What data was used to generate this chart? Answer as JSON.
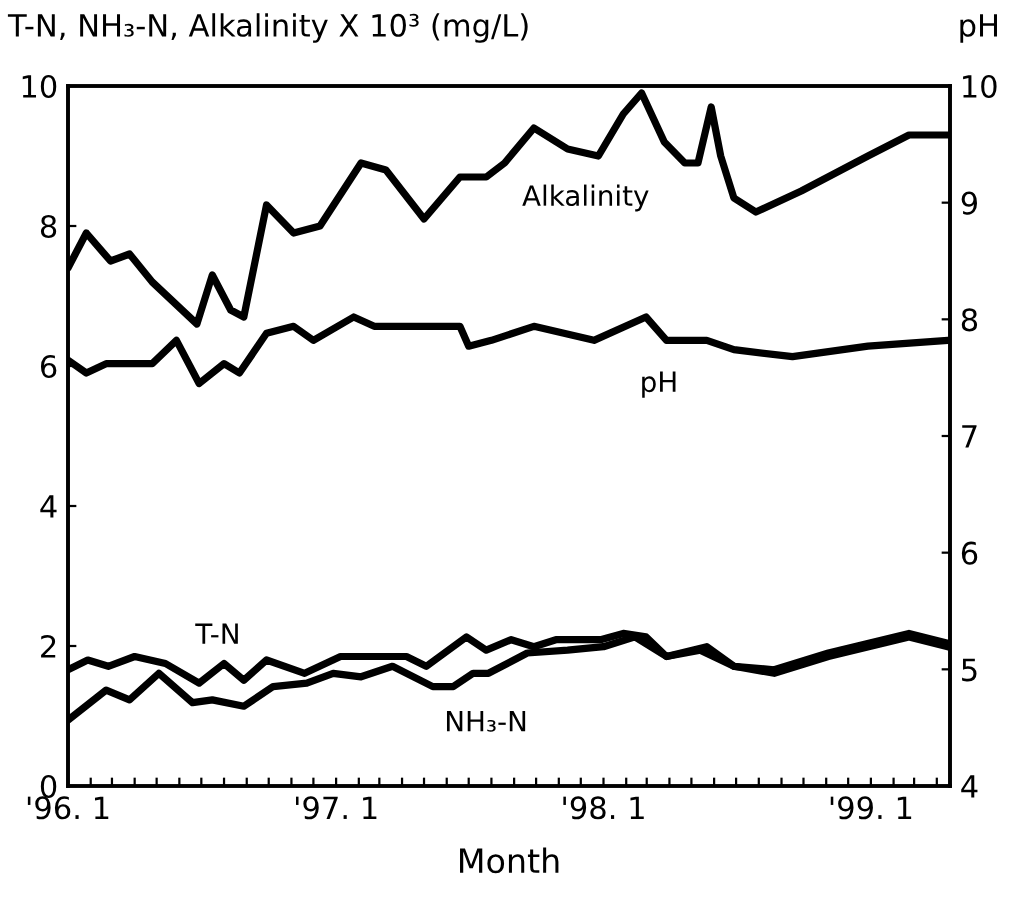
{
  "chart_data": {
    "type": "line",
    "ylabel": "T-N, NH₃-N, Alkalinity X 10³ (mg/L)",
    "y2label": "pH",
    "xlabel": "Month",
    "xlim": [
      "1996-01-01",
      "1999-04-19"
    ],
    "ylim": [
      0,
      10
    ],
    "yticks": [
      0,
      2,
      4,
      6,
      8,
      10
    ],
    "y2lim": [
      4,
      10
    ],
    "y2ticks": [
      4,
      5,
      6,
      7,
      8,
      9,
      10
    ],
    "xticks": [
      {
        "value": "1996-01",
        "label": "'96. 1"
      },
      {
        "value": "1996-02",
        "label": null
      },
      {
        "value": "1996-03",
        "label": null
      },
      {
        "value": "1996-04",
        "label": null
      },
      {
        "value": "1996-05",
        "label": null
      },
      {
        "value": "1996-06",
        "label": null
      },
      {
        "value": "1996-07",
        "label": null
      },
      {
        "value": "1996-08",
        "label": null
      },
      {
        "value": "1996-09",
        "label": null
      },
      {
        "value": "1996-10",
        "label": null
      },
      {
        "value": "1996-11",
        "label": null
      },
      {
        "value": "1996-12",
        "label": null
      },
      {
        "value": "1997-01",
        "label": "'97. 1"
      },
      {
        "value": "1997-02",
        "label": null
      },
      {
        "value": "1997-03",
        "label": null
      },
      {
        "value": "1997-04",
        "label": null
      },
      {
        "value": "1997-05",
        "label": null
      },
      {
        "value": "1997-06",
        "label": null
      },
      {
        "value": "1997-07",
        "label": null
      },
      {
        "value": "1997-08",
        "label": null
      },
      {
        "value": "1997-09",
        "label": null
      },
      {
        "value": "1997-10",
        "label": null
      },
      {
        "value": "1997-11",
        "label": null
      },
      {
        "value": "1997-12",
        "label": null
      },
      {
        "value": "1998-01",
        "label": "'98. 1"
      },
      {
        "value": "1998-02",
        "label": null
      },
      {
        "value": "1998-03",
        "label": null
      },
      {
        "value": "1998-04",
        "label": null
      },
      {
        "value": "1998-05",
        "label": null
      },
      {
        "value": "1998-06",
        "label": null
      },
      {
        "value": "1998-07",
        "label": null
      },
      {
        "value": "1998-08",
        "label": null
      },
      {
        "value": "1998-09",
        "label": null
      },
      {
        "value": "1998-10",
        "label": null
      },
      {
        "value": "1998-11",
        "label": null
      },
      {
        "value": "1998-12",
        "label": null
      },
      {
        "value": "1999-01",
        "label": "'99. 1"
      },
      {
        "value": "1999-02",
        "label": null
      },
      {
        "value": "1999-03",
        "label": null
      },
      {
        "value": "1999-04",
        "label": null
      }
    ],
    "marker": "none",
    "line_style": "solid",
    "series": [
      {
        "name": "Alkalinity",
        "color": "#000000",
        "x": [
          "1996-01-01",
          "1996-01-26",
          "1996-02-28",
          "1996-03-25",
          "1996-04-25",
          "1996-06-25",
          "1996-07-16",
          "1996-08-10",
          "1996-08-28",
          "1996-09-28",
          "1996-11-04",
          "1996-12-10",
          "1997-02-04",
          "1997-03-10",
          "1997-05-01",
          "1997-06-19",
          "1997-07-25",
          "1997-08-19",
          "1997-09-28",
          "1997-11-13",
          "1997-12-25",
          "1998-01-28",
          "1998-02-22",
          "1998-03-25",
          "1998-04-22",
          "1998-05-10",
          "1998-05-28",
          "1998-06-10",
          "1998-06-28",
          "1998-07-28",
          "1998-09-28",
          "1998-12-28",
          "1999-02-22",
          "1999-04-16"
        ],
        "values": [
          7.4,
          7.9,
          7.5,
          7.6,
          7.2,
          6.6,
          7.3,
          6.8,
          6.7,
          8.3,
          7.9,
          8.0,
          8.9,
          8.8,
          8.1,
          8.7,
          8.7,
          8.9,
          9.4,
          9.1,
          9.0,
          9.6,
          9.9,
          9.2,
          8.9,
          8.9,
          9.7,
          9.0,
          8.4,
          8.2,
          8.5,
          9.0,
          9.3,
          9.3
        ]
      },
      {
        "name": "pH",
        "color": "#000000",
        "axis": "y2",
        "x": [
          "1996-01-01",
          "1996-01-26",
          "1996-02-22",
          "1996-04-25",
          "1996-05-28",
          "1996-06-28",
          "1996-08-01",
          "1996-08-22",
          "1996-09-28",
          "1996-11-04",
          "1996-12-01",
          "1997-01-25",
          "1997-02-22",
          "1997-06-19",
          "1997-07-01",
          "1997-08-01",
          "1997-09-28",
          "1997-12-19",
          "1998-02-28",
          "1998-03-28",
          "1998-05-22",
          "1998-06-28",
          "1998-09-16",
          "1998-12-28",
          "1999-04-16"
        ],
        "values": [
          7.65,
          7.54,
          7.62,
          7.62,
          7.82,
          7.45,
          7.62,
          7.54,
          7.88,
          7.94,
          7.82,
          8.02,
          7.94,
          7.94,
          7.77,
          7.82,
          7.94,
          7.82,
          8.02,
          7.82,
          7.82,
          7.74,
          7.68,
          7.77,
          7.82
        ]
      },
      {
        "name": "T-N",
        "color": "#000000",
        "x": [
          "1996-01-01",
          "1996-01-28",
          "1996-02-25",
          "1996-04-01",
          "1996-05-13",
          "1996-06-28",
          "1996-08-01",
          "1996-08-28",
          "1996-09-28",
          "1996-11-19",
          "1997-01-07",
          "1997-04-07",
          "1997-05-04",
          "1997-06-28",
          "1997-07-25",
          "1997-08-28",
          "1997-09-28",
          "1997-10-28",
          "1997-12-28",
          "1998-01-28",
          "1998-02-28",
          "1998-03-28",
          "1998-05-22",
          "1998-06-28",
          "1998-08-22",
          "1998-11-04",
          "1999-02-22",
          "1999-04-16"
        ],
        "values": [
          1.66,
          1.8,
          1.71,
          1.85,
          1.75,
          1.47,
          1.75,
          1.51,
          1.8,
          1.61,
          1.85,
          1.85,
          1.71,
          2.13,
          1.94,
          2.09,
          1.99,
          2.09,
          2.09,
          2.18,
          2.13,
          1.85,
          1.99,
          1.71,
          1.66,
          1.9,
          2.18,
          2.04
        ]
      },
      {
        "name": "NH₃-N",
        "color": "#000000",
        "x": [
          "1996-01-01",
          "1996-02-22",
          "1996-03-25",
          "1996-05-04",
          "1996-06-19",
          "1996-07-16",
          "1996-08-28",
          "1996-10-07",
          "1996-11-22",
          "1996-12-28",
          "1997-02-04",
          "1997-03-19",
          "1997-05-13",
          "1997-06-10",
          "1997-07-07",
          "1997-07-28",
          "1997-09-19",
          "1997-11-13",
          "1998-01-01",
          "1998-02-13",
          "1998-03-28",
          "1998-05-13",
          "1998-06-28",
          "1998-08-22",
          "1998-11-04",
          "1999-02-22",
          "1999-04-16"
        ],
        "values": [
          0.94,
          1.37,
          1.23,
          1.61,
          1.19,
          1.23,
          1.14,
          1.42,
          1.47,
          1.61,
          1.56,
          1.71,
          1.42,
          1.42,
          1.61,
          1.61,
          1.9,
          1.94,
          1.99,
          2.13,
          1.85,
          1.94,
          1.71,
          1.61,
          1.85,
          2.13,
          1.99
        ]
      }
    ]
  }
}
